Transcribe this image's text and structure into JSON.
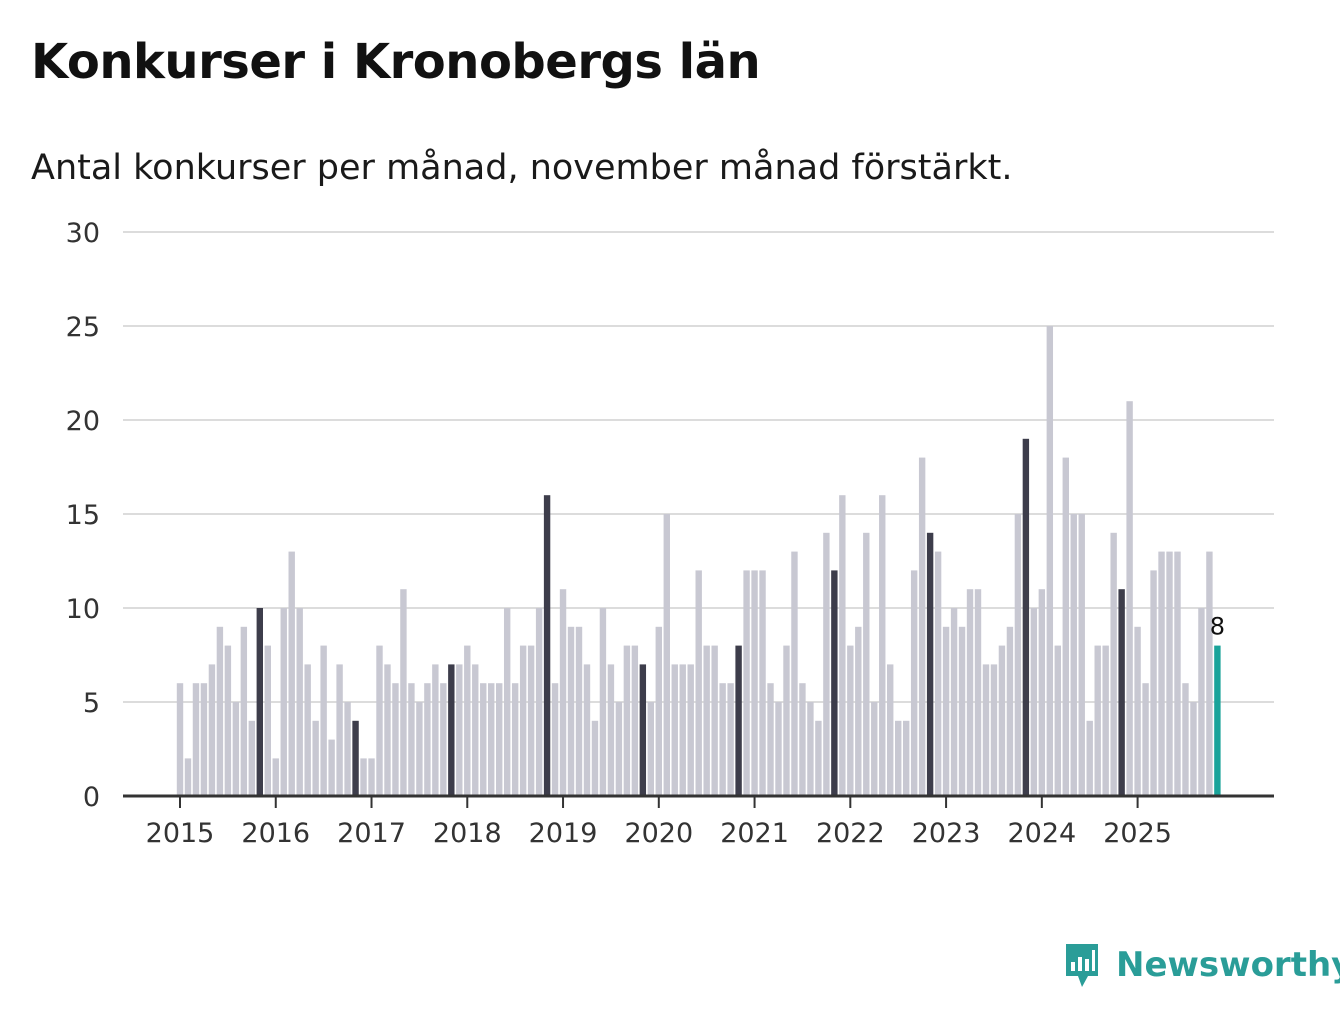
{
  "title": "Konkurser i Kronobergs län",
  "subtitle": "Antal konkurser per månad, november månad förstärkt.",
  "brand": {
    "name": "Newsworthy",
    "icon": "newsworthy-logo-icon"
  },
  "colors": {
    "bar": "#c8c8d2",
    "highlight": "#3d3d4b",
    "latest": "#1aa39a",
    "grid": "#dcdcdc",
    "axis": "#333333",
    "brand": "#2a9d98"
  },
  "chart_data": {
    "type": "bar",
    "title": "Konkurser i Kronobergs län",
    "subtitle": "Antal konkurser per månad, november månad förstärkt.",
    "xlabel": "",
    "ylabel": "",
    "ylim": [
      0,
      30
    ],
    "yticks": [
      "0",
      "5",
      "10",
      "15",
      "20",
      "25",
      "30"
    ],
    "xticks": [
      "2015",
      "2016",
      "2017",
      "2018",
      "2019",
      "2020",
      "2021",
      "2022",
      "2023",
      "2024",
      "2025"
    ],
    "start": "2015-01",
    "highlight_month": "november",
    "grid": true,
    "latest_label": "8",
    "values": [
      6,
      2,
      6,
      6,
      7,
      9,
      8,
      5,
      9,
      4,
      10,
      8,
      2,
      10,
      13,
      10,
      7,
      4,
      8,
      3,
      7,
      5,
      4,
      2,
      2,
      8,
      7,
      6,
      11,
      6,
      5,
      6,
      7,
      6,
      7,
      7,
      8,
      7,
      6,
      6,
      6,
      10,
      6,
      8,
      8,
      10,
      16,
      6,
      11,
      9,
      9,
      7,
      4,
      10,
      7,
      5,
      8,
      8,
      7,
      5,
      9,
      15,
      7,
      7,
      7,
      12,
      8,
      8,
      6,
      6,
      8,
      12,
      12,
      12,
      6,
      5,
      8,
      13,
      6,
      5,
      4,
      14,
      12,
      16,
      8,
      9,
      14,
      5,
      16,
      7,
      4,
      4,
      12,
      18,
      14,
      13,
      9,
      10,
      9,
      11,
      11,
      7,
      7,
      8,
      9,
      15,
      19,
      10,
      11,
      25,
      8,
      18,
      15,
      15,
      4,
      8,
      8,
      14,
      11,
      21,
      9,
      6,
      12,
      13,
      13,
      13,
      6,
      5,
      10,
      13,
      8
    ]
  }
}
